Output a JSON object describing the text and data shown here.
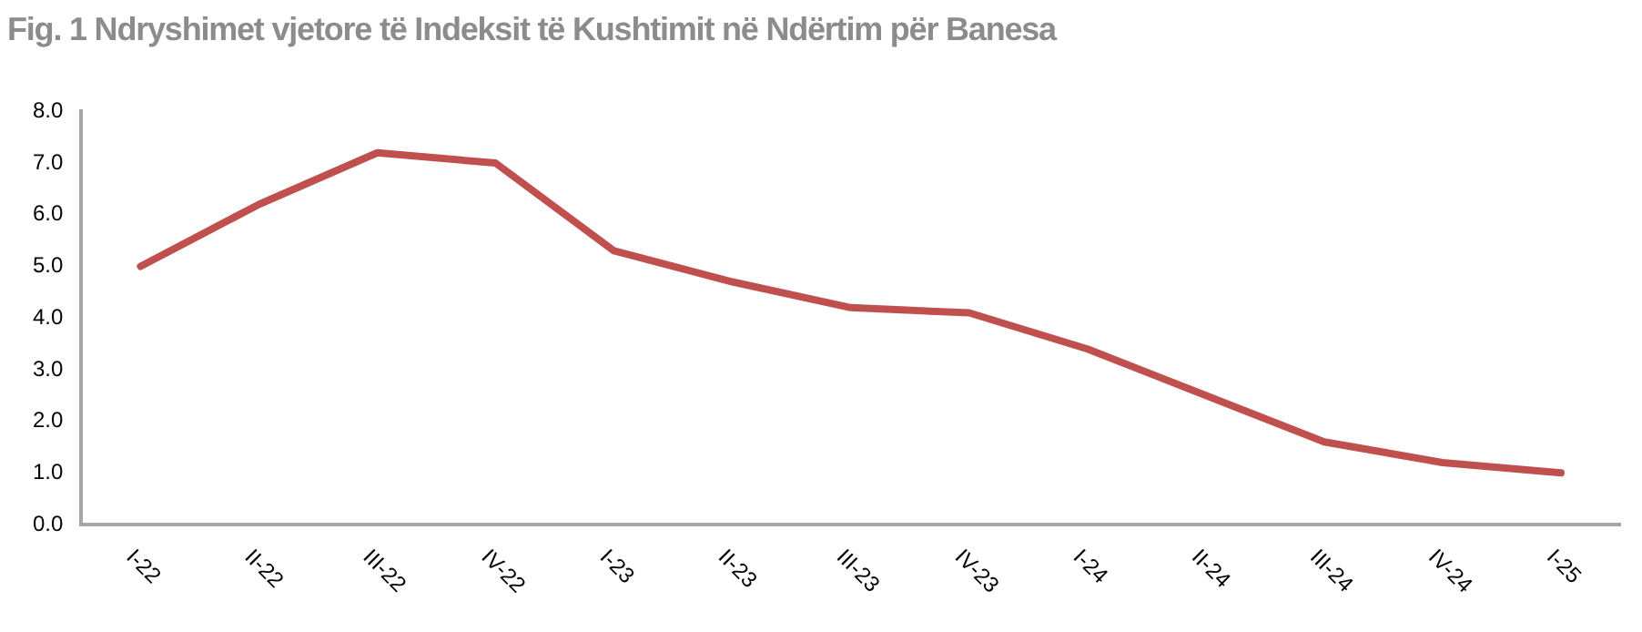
{
  "chart_data": {
    "type": "line",
    "title": "Fig. 1 Ndryshimet vjetore të Indeksit të Kushtimit në Ndërtim për Banesa",
    "categories": [
      "I-22",
      "II-22",
      "III-22",
      "IV-22",
      "I-23",
      "II-23",
      "III-23",
      "IV-23",
      "I-24",
      "II-24",
      "III-24",
      "IV-24",
      "I-25"
    ],
    "series": [
      {
        "color": "#c0504d",
        "values": [
          5.0,
          6.2,
          7.2,
          7.0,
          5.3,
          4.7,
          4.2,
          4.1,
          3.4,
          2.5,
          1.6,
          1.2,
          1.0
        ]
      }
    ],
    "ylim": [
      0,
      8
    ],
    "yticks": [
      {
        "value": 0,
        "label": "0.0"
      },
      {
        "value": 1,
        "label": "1.0"
      },
      {
        "value": 2,
        "label": "2.0"
      },
      {
        "value": 3,
        "label": "3.0"
      },
      {
        "value": 4,
        "label": "4.0"
      },
      {
        "value": 5,
        "label": "5.0"
      },
      {
        "value": 6,
        "label": "6.0"
      },
      {
        "value": 7,
        "label": "7.0"
      },
      {
        "value": 8,
        "label": "8.0"
      }
    ],
    "grid": false,
    "legend": false,
    "marker": "none",
    "line_style": "solid"
  }
}
